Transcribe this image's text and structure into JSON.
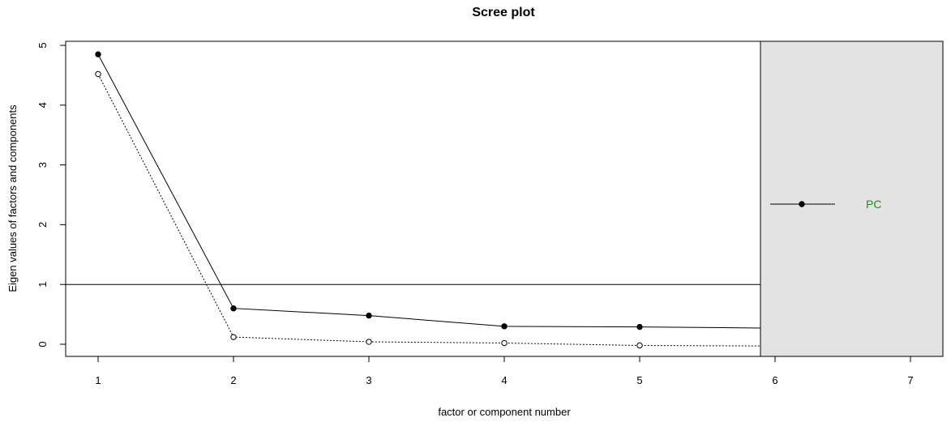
{
  "chart_data": {
    "type": "line",
    "title": "Scree plot",
    "xlabel": "factor or component number",
    "ylabel": "Eigen values of factors and components",
    "xlim": [
      1,
      7
    ],
    "ylim": [
      0,
      5
    ],
    "x_ticks": [
      1,
      2,
      3,
      4,
      5,
      6,
      7
    ],
    "y_ticks": [
      0,
      1,
      2,
      3,
      4,
      5
    ],
    "reference_line": 1,
    "series": [
      {
        "name": "PC",
        "style": "solid",
        "marker": "filled-circle",
        "x": [
          1,
          2,
          3,
          4,
          5,
          6
        ],
        "y": [
          4.85,
          0.6,
          0.48,
          0.3,
          0.29,
          0.27
        ]
      },
      {
        "style": "dotted",
        "marker": "open-circle",
        "x": [
          1,
          2,
          3,
          4,
          5,
          6
        ],
        "y": [
          4.52,
          0.12,
          0.04,
          0.02,
          -0.02,
          -0.03
        ]
      }
    ],
    "legend": {
      "placement": "right",
      "background": "#e3e3e3",
      "label_color": "#228b22",
      "entries": [
        "PC"
      ]
    }
  }
}
